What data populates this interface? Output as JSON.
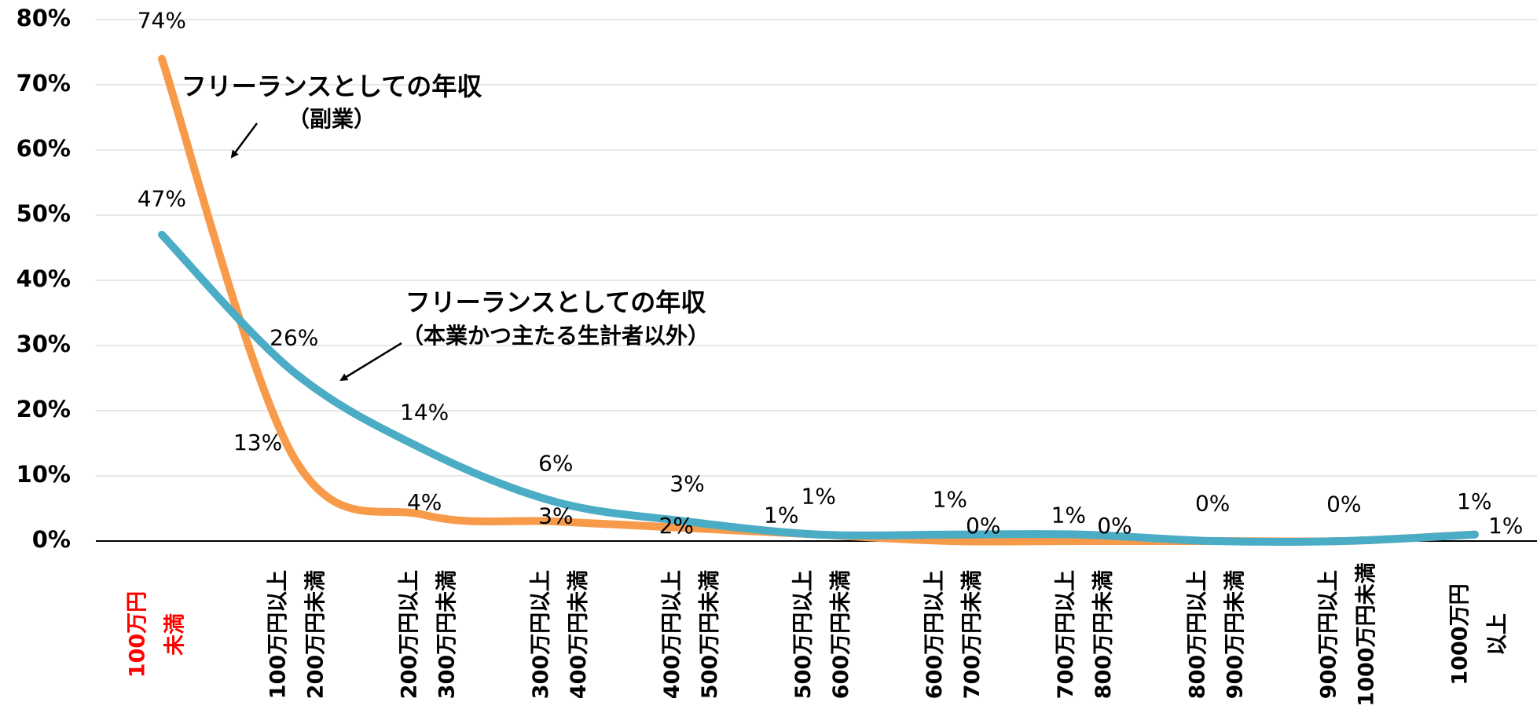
{
  "chart_data": {
    "type": "line",
    "categories": [
      [
        "100万円",
        "未満"
      ],
      [
        "100万円以上",
        "200万円未満"
      ],
      [
        "200万円以上",
        "300万円未満"
      ],
      [
        "300万円以上",
        "400万円未満"
      ],
      [
        "400万円以上",
        "500万円未満"
      ],
      [
        "500万円以上",
        "600万円未満"
      ],
      [
        "600万円以上",
        "700万円未満"
      ],
      [
        "700万円以上",
        "800万円未満"
      ],
      [
        "800万円以上",
        "900万円未満"
      ],
      [
        "900万円以上",
        "1000万円未満"
      ],
      [
        "1000万円",
        "以上"
      ]
    ],
    "first_category_color": "#ff0000",
    "series": [
      {
        "color": "#f79a4a",
        "values": [
          74,
          13,
          4,
          3,
          2,
          1,
          0,
          0,
          0,
          0,
          1
        ],
        "value_labels": [
          "74%",
          "13%",
          "4%",
          "3%",
          "2%",
          "1%",
          "0%",
          "0%",
          null,
          null,
          "1%"
        ]
      },
      {
        "color": "#4bacc6",
        "values": [
          47,
          26,
          14,
          6,
          3,
          1,
          1,
          1,
          0,
          0,
          1
        ],
        "value_labels": [
          "47%",
          "26%",
          "14%",
          "6%",
          "3%",
          "1%",
          "1%",
          "1%",
          "0%",
          "0%",
          "1%"
        ]
      }
    ],
    "annotations": [
      {
        "text": [
          "フリーランスとしての年収",
          "（副業）"
        ]
      },
      {
        "text": [
          "フリーランスとしての年収",
          "（本業かつ主たる生計者以外）"
        ]
      }
    ],
    "ylim": [
      0,
      80
    ],
    "yticks": [
      {
        "value": 0,
        "label": "0%"
      },
      {
        "value": 10,
        "label": "10%"
      },
      {
        "value": 20,
        "label": "20%"
      },
      {
        "value": 30,
        "label": "30%"
      },
      {
        "value": 40,
        "label": "40%"
      },
      {
        "value": 50,
        "label": "50%"
      },
      {
        "value": 60,
        "label": "60%"
      },
      {
        "value": 70,
        "label": "70%"
      },
      {
        "value": 80,
        "label": "80%"
      }
    ],
    "grid": true
  }
}
